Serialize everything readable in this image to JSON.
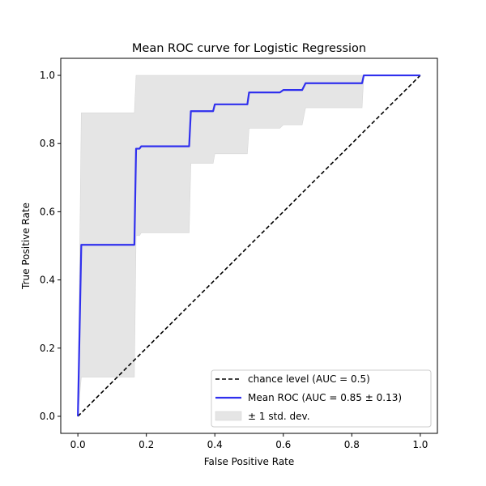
{
  "chart_data": {
    "type": "line",
    "title": "Mean ROC curve for Logistic Regression",
    "xlabel": "False Positive Rate",
    "ylabel": "True Positive Rate",
    "xlim": [
      -0.05,
      1.05
    ],
    "ylim": [
      -0.05,
      1.05
    ],
    "xticks": [
      "0.0",
      "0.2",
      "0.4",
      "0.6",
      "0.8",
      "1.0"
    ],
    "yticks": [
      "0.0",
      "0.2",
      "0.4",
      "0.6",
      "0.8",
      "1.0"
    ],
    "grid": false,
    "legend_position": "lower-right",
    "series": [
      {
        "name": "chance level (AUC = 0.5)",
        "style": "dashed",
        "color": "#000000",
        "x": [
          0,
          1
        ],
        "y": [
          0,
          1
        ]
      },
      {
        "name": "Mean ROC (AUC = 0.85 ± 0.13)",
        "style": "solid",
        "color": "#3030ee",
        "x": [
          0.0,
          0.01,
          0.01,
          0.165,
          0.17,
          0.18,
          0.185,
          0.325,
          0.33,
          0.395,
          0.4,
          0.495,
          0.5,
          0.59,
          0.6,
          0.655,
          0.665,
          0.83,
          0.835,
          1.0
        ],
        "y": [
          0.0,
          0.503,
          0.503,
          0.503,
          0.785,
          0.785,
          0.792,
          0.792,
          0.895,
          0.895,
          0.915,
          0.915,
          0.95,
          0.95,
          0.957,
          0.957,
          0.977,
          0.977,
          1.0,
          1.0
        ]
      },
      {
        "name": "± 1 std. dev.",
        "style": "band",
        "color": "#d9d9d9",
        "x": [
          0.0,
          0.01,
          0.01,
          0.165,
          0.17,
          0.18,
          0.185,
          0.325,
          0.33,
          0.395,
          0.4,
          0.495,
          0.5,
          0.59,
          0.6,
          0.655,
          0.665,
          0.83,
          0.835,
          1.0
        ],
        "upper": [
          0.0,
          0.89,
          0.89,
          0.89,
          1.0,
          1.0,
          1.0,
          1.0,
          1.0,
          1.0,
          1.0,
          1.0,
          1.0,
          1.0,
          1.0,
          1.0,
          1.0,
          1.0,
          1.0,
          1.0
        ],
        "lower": [
          0.0,
          0.115,
          0.115,
          0.115,
          0.53,
          0.53,
          0.538,
          0.538,
          0.742,
          0.742,
          0.77,
          0.77,
          0.845,
          0.845,
          0.855,
          0.855,
          0.905,
          0.905,
          1.0,
          1.0
        ]
      }
    ]
  }
}
